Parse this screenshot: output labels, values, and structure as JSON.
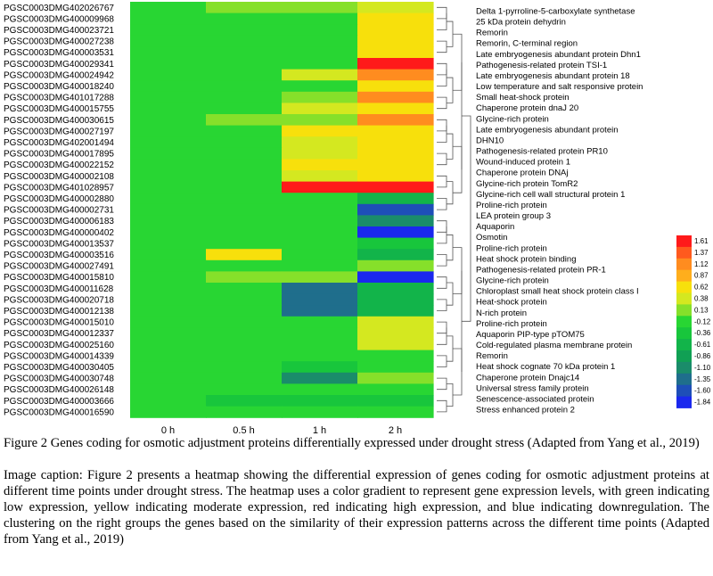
{
  "chart_data": {
    "type": "heatmap",
    "title": "",
    "xlabel": "",
    "ylabel": "",
    "columns": [
      "0 h",
      "0.5 h",
      "1 h",
      "2 h"
    ],
    "rows": [
      {
        "gene": "PGSC0003DMG402026767",
        "protein": "Delta 1-pyrroline-5-carboxylate synthetase",
        "values": [
          0.0,
          0.1,
          0.1,
          0.4
        ]
      },
      {
        "gene": "PGSC0003DMG400009968",
        "protein": "25 kDa protein dehydrin",
        "values": [
          0.0,
          0.0,
          0.0,
          0.7
        ]
      },
      {
        "gene": "PGSC0003DMG400023721",
        "protein": "Remorin",
        "values": [
          0.0,
          0.0,
          0.0,
          0.7
        ]
      },
      {
        "gene": "PGSC0003DMG400027238",
        "protein": "Remorin, C-terminal region",
        "values": [
          0.0,
          0.0,
          0.0,
          0.7
        ]
      },
      {
        "gene": "PGSC0003DMG400003531",
        "protein": "Late embryogenesis abundant protein Dhn1",
        "values": [
          0.0,
          0.0,
          0.0,
          0.7
        ]
      },
      {
        "gene": "PGSC0003DMG400029341",
        "protein": "Pathogenesis-related protein TSI-1",
        "values": [
          0.0,
          0.0,
          0.0,
          1.61
        ]
      },
      {
        "gene": "PGSC0003DMG400024942",
        "protein": "Late embryogenesis abundant protein 18",
        "values": [
          0.0,
          0.0,
          0.3,
          1.2
        ]
      },
      {
        "gene": "PGSC0003DMG400018240",
        "protein": "Low temperature and salt responsive protein",
        "values": [
          0.0,
          0.0,
          0.0,
          0.7
        ]
      },
      {
        "gene": "PGSC0003DMG401017288",
        "protein": "Small heat-shock protein",
        "values": [
          0.0,
          0.0,
          0.2,
          1.0
        ]
      },
      {
        "gene": "PGSC0003DMG400015755",
        "protein": "Chaperone protein dnaJ 20",
        "values": [
          0.0,
          0.0,
          0.3,
          0.7
        ]
      },
      {
        "gene": "PGSC0003DMG400030615",
        "protein": "Glycine-rich protein",
        "values": [
          0.0,
          0.2,
          0.2,
          1.0
        ]
      },
      {
        "gene": "PGSC0003DMG400027197",
        "protein": "Late embryogenesis abundant protein",
        "values": [
          0.0,
          0.0,
          0.5,
          0.7
        ]
      },
      {
        "gene": "PGSC0003DMG402001494",
        "protein": "DHN10",
        "values": [
          0.0,
          0.0,
          0.3,
          0.6
        ]
      },
      {
        "gene": "PGSC0003DMG400017895",
        "protein": "Pathogenesis-related protein PR10",
        "values": [
          0.0,
          0.0,
          0.3,
          0.6
        ]
      },
      {
        "gene": "PGSC0003DMG400022152",
        "protein": "Wound-induced protein 1",
        "values": [
          0.0,
          0.0,
          0.5,
          0.7
        ]
      },
      {
        "gene": "PGSC0003DMG400002108",
        "protein": "Chaperone protein DNAj",
        "values": [
          0.0,
          0.0,
          0.4,
          0.7
        ]
      },
      {
        "gene": "PGSC0003DMG401028957",
        "protein": "Glycine-rich protein TomR2",
        "values": [
          0.0,
          0.0,
          1.61,
          1.61
        ]
      },
      {
        "gene": "PGSC0003DMG400002880",
        "protein": "Glycine-rich cell wall structural protein 1",
        "values": [
          0.0,
          0.0,
          0.0,
          -0.6
        ]
      },
      {
        "gene": "PGSC0003DMG400002731",
        "protein": "Proline-rich protein",
        "values": [
          0.0,
          0.0,
          0.0,
          -1.5
        ]
      },
      {
        "gene": "PGSC0003DMG400006183",
        "protein": "LEA protein group 3",
        "values": [
          0.0,
          0.0,
          0.0,
          -1.0
        ]
      },
      {
        "gene": "PGSC0003DMG400000402",
        "protein": "Aquaporin",
        "values": [
          0.0,
          0.0,
          0.0,
          -1.84
        ]
      },
      {
        "gene": "PGSC0003DMG400013537",
        "protein": "Osmotin",
        "values": [
          0.0,
          0.0,
          0.0,
          -0.4
        ]
      },
      {
        "gene": "PGSC0003DMG400003516",
        "protein": "Proline-rich protein",
        "values": [
          0.0,
          0.6,
          0.0,
          -0.6
        ]
      },
      {
        "gene": "PGSC0003DMG400027491",
        "protein": "Heat shock protein binding",
        "values": [
          0.0,
          0.0,
          0.0,
          0.2
        ]
      },
      {
        "gene": "PGSC0003DMG400015810",
        "protein": "Pathogenesis-related protein PR-1",
        "values": [
          0.0,
          0.2,
          0.2,
          -1.84
        ]
      },
      {
        "gene": "PGSC0003DMG400011628",
        "protein": "Glycine-rich protein",
        "values": [
          0.0,
          0.0,
          -1.4,
          -0.6
        ]
      },
      {
        "gene": "PGSC0003DMG400020718",
        "protein": "Chloroplast small heat shock protein class I",
        "values": [
          0.0,
          0.0,
          -1.4,
          -0.6
        ]
      },
      {
        "gene": "PGSC0003DMG400012138",
        "protein": "Heat-shock protein",
        "values": [
          0.0,
          0.0,
          -1.4,
          -0.6
        ]
      },
      {
        "gene": "PGSC0003DMG400015010",
        "protein": "N-rich protein",
        "values": [
          0.0,
          0.0,
          0.0,
          0.3
        ]
      },
      {
        "gene": "PGSC0003DMG400012337",
        "protein": "Proline-rich protein",
        "values": [
          0.0,
          0.0,
          0.0,
          0.3
        ]
      },
      {
        "gene": "PGSC0003DMG400025160",
        "protein": "Aquaporin PIP-type pTOM75",
        "values": [
          0.0,
          0.0,
          0.0,
          0.3
        ]
      },
      {
        "gene": "PGSC0003DMG400014339",
        "protein": "Cold-regulated plasma membrane protein",
        "values": [
          0.0,
          0.0,
          0.0,
          0.0
        ]
      },
      {
        "gene": "PGSC0003DMG400030405",
        "protein": "Remorin",
        "values": [
          0.0,
          0.0,
          -0.3,
          0.0
        ]
      },
      {
        "gene": "PGSC0003DMG400030748",
        "protein": "Heat shock cognate 70 kDa protein 1",
        "values": [
          0.0,
          0.0,
          -1.0,
          0.2
        ]
      },
      {
        "gene": "PGSC0003DMG400026148",
        "protein": "Chaperone protein Dnajc14",
        "values": [
          0.0,
          0.0,
          0.0,
          0.0
        ]
      },
      {
        "gene": "PGSC0003DMG400003666",
        "protein": "Universal stress family protein",
        "values": [
          0.0,
          -0.3,
          -0.3,
          -0.3
        ]
      },
      {
        "gene": "PGSC0003DMG400016590",
        "protein": "Senescence-associated protein",
        "values": [
          0.0,
          0.0,
          0.0,
          0.0
        ]
      }
    ],
    "extra_labels": [
      "Stress enhanced protein 2"
    ],
    "legend": {
      "placement": "right",
      "ticks": [
        1.61,
        1.37,
        1.12,
        0.87,
        0.62,
        0.38,
        0.13,
        -0.12,
        -0.36,
        -0.61,
        -0.86,
        -1.1,
        -1.35,
        -1.6,
        -1.84
      ],
      "tick_labels": [
        "1.61",
        "1.37",
        "1.12",
        "0.87",
        "0.62",
        "0.38",
        "0.13",
        "-0.12",
        "-0.36",
        "-0.61",
        "-0.86",
        "-1.10",
        "-1.35",
        "-1.60",
        "-1.84"
      ],
      "colors": [
        "#ff1a1a",
        "#ff5a1e",
        "#ff8c1f",
        "#ffae1c",
        "#f7e00c",
        "#d4e820",
        "#86e02a",
        "#28d633",
        "#18c63c",
        "#12b44a",
        "#10a054",
        "#1a8c6a",
        "#1f6e8c",
        "#1e4eb8",
        "#1a28ee"
      ]
    }
  },
  "captions": {
    "figure": "Figure 2 Genes coding for osmotic adjustment proteins differentially expressed under drought stress (Adapted from Yang et al., 2019)",
    "image": "Image caption: Figure 2 presents a heatmap showing the differential expression of genes coding for osmotic adjustment proteins at different time points under drought stress. The heatmap uses a color gradient to represent gene expression levels, with green indicating low expression, yellow indicating moderate expression, red indicating high expression, and blue indicating downregulation. The clustering on the right groups the genes based on the similarity of their expression patterns across the different time points (Adapted from Yang et al., 2019)"
  }
}
